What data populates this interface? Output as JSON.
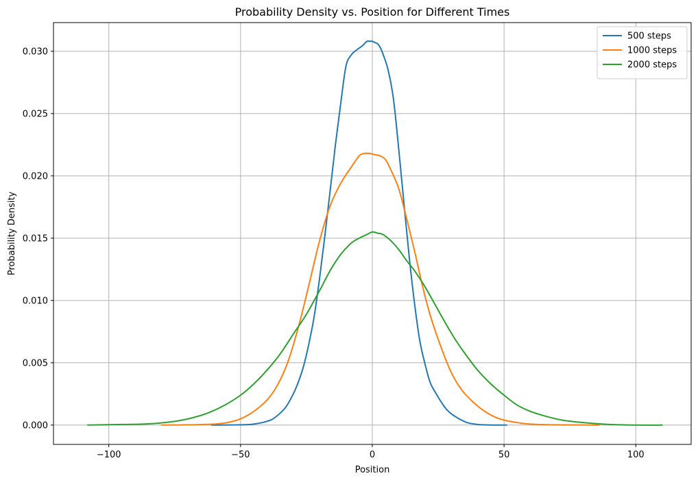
{
  "chart_data": {
    "type": "line",
    "title": "Probability Density vs. Position for Different Times",
    "xlabel": "Position",
    "ylabel": "Probability Density",
    "xlim": [
      -121,
      121
    ],
    "ylim": [
      -0.00155,
      0.0323
    ],
    "xticks": [
      -100,
      -50,
      0,
      50,
      100
    ],
    "xtick_labels": [
      "−100",
      "−50",
      "0",
      "50",
      "100"
    ],
    "yticks": [
      0.0,
      0.005,
      0.01,
      0.015,
      0.02,
      0.025,
      0.03
    ],
    "ytick_labels": [
      "0.000",
      "0.005",
      "0.010",
      "0.015",
      "0.020",
      "0.025",
      "0.030"
    ],
    "grid": true,
    "legend_position": "top-right",
    "series": [
      {
        "name": "500 steps",
        "color": "#1f77b4",
        "x": [
          -61,
          -50,
          -45,
          -40,
          -37,
          -33,
          -30,
          -28,
          -26,
          -24,
          -22,
          -20,
          -18,
          -16,
          -14,
          -12,
          -10,
          -8,
          -6,
          -4,
          -3,
          -2,
          -1,
          0,
          1,
          2,
          3,
          4,
          6,
          8,
          10,
          12,
          14,
          16,
          18,
          20,
          22,
          24,
          26,
          28,
          30,
          33,
          36,
          40,
          44,
          48,
          51
        ],
        "y": [
          0.0,
          2e-05,
          8e-05,
          0.0003,
          0.0006,
          0.0014,
          0.0025,
          0.0035,
          0.0048,
          0.0066,
          0.0088,
          0.0118,
          0.0152,
          0.0188,
          0.0225,
          0.0258,
          0.0288,
          0.0297,
          0.0301,
          0.0304,
          0.0306,
          0.0308,
          0.0308,
          0.0308,
          0.0307,
          0.0306,
          0.0303,
          0.0298,
          0.0285,
          0.0262,
          0.0222,
          0.0178,
          0.0135,
          0.0098,
          0.0068,
          0.0049,
          0.0034,
          0.0026,
          0.0019,
          0.0013,
          0.0009,
          0.0005,
          0.0002,
          5e-05,
          1e-05,
          0.0,
          0.0
        ]
      },
      {
        "name": "1000 steps",
        "color": "#ff7f0e",
        "x": [
          -80,
          -70,
          -60,
          -55,
          -50,
          -45,
          -40,
          -36,
          -32,
          -28,
          -24,
          -20,
          -16,
          -12,
          -8,
          -5,
          -3,
          -1,
          1,
          3,
          5,
          7,
          10,
          13,
          16,
          19,
          22,
          26,
          30,
          34,
          38,
          42,
          46,
          50,
          55,
          60,
          70,
          86
        ],
        "y": [
          0.0,
          2e-05,
          8e-05,
          0.0002,
          0.0005,
          0.0011,
          0.002,
          0.0032,
          0.0051,
          0.0079,
          0.0113,
          0.0148,
          0.0176,
          0.0194,
          0.0207,
          0.0216,
          0.0218,
          0.0218,
          0.0217,
          0.0216,
          0.0213,
          0.0205,
          0.019,
          0.0166,
          0.014,
          0.0112,
          0.0088,
          0.0063,
          0.0042,
          0.0028,
          0.0019,
          0.0012,
          0.0007,
          0.0004,
          0.0002,
          8e-05,
          2e-05,
          0.0
        ]
      },
      {
        "name": "2000 steps",
        "color": "#2ca02c",
        "x": [
          -108,
          -95,
          -85,
          -75,
          -68,
          -62,
          -56,
          -50,
          -45,
          -40,
          -35,
          -30,
          -25,
          -20,
          -16,
          -12,
          -8,
          -5,
          -2,
          0,
          2,
          4,
          7,
          10,
          13,
          16,
          20,
          24,
          28,
          32,
          36,
          40,
          45,
          50,
          55,
          60,
          66,
          72,
          80,
          90,
          100,
          110
        ],
        "y": [
          0.0,
          5e-05,
          0.0001,
          0.0003,
          0.0006,
          0.001,
          0.0016,
          0.0024,
          0.0033,
          0.0044,
          0.0057,
          0.0073,
          0.0089,
          0.0108,
          0.0124,
          0.0137,
          0.0146,
          0.015,
          0.0153,
          0.0155,
          0.0154,
          0.0153,
          0.0148,
          0.0141,
          0.0132,
          0.0124,
          0.0111,
          0.0096,
          0.0081,
          0.0067,
          0.0055,
          0.0044,
          0.0033,
          0.0024,
          0.0016,
          0.0011,
          0.0007,
          0.0004,
          0.0002,
          5e-05,
          0.0,
          0.0
        ]
      }
    ]
  }
}
